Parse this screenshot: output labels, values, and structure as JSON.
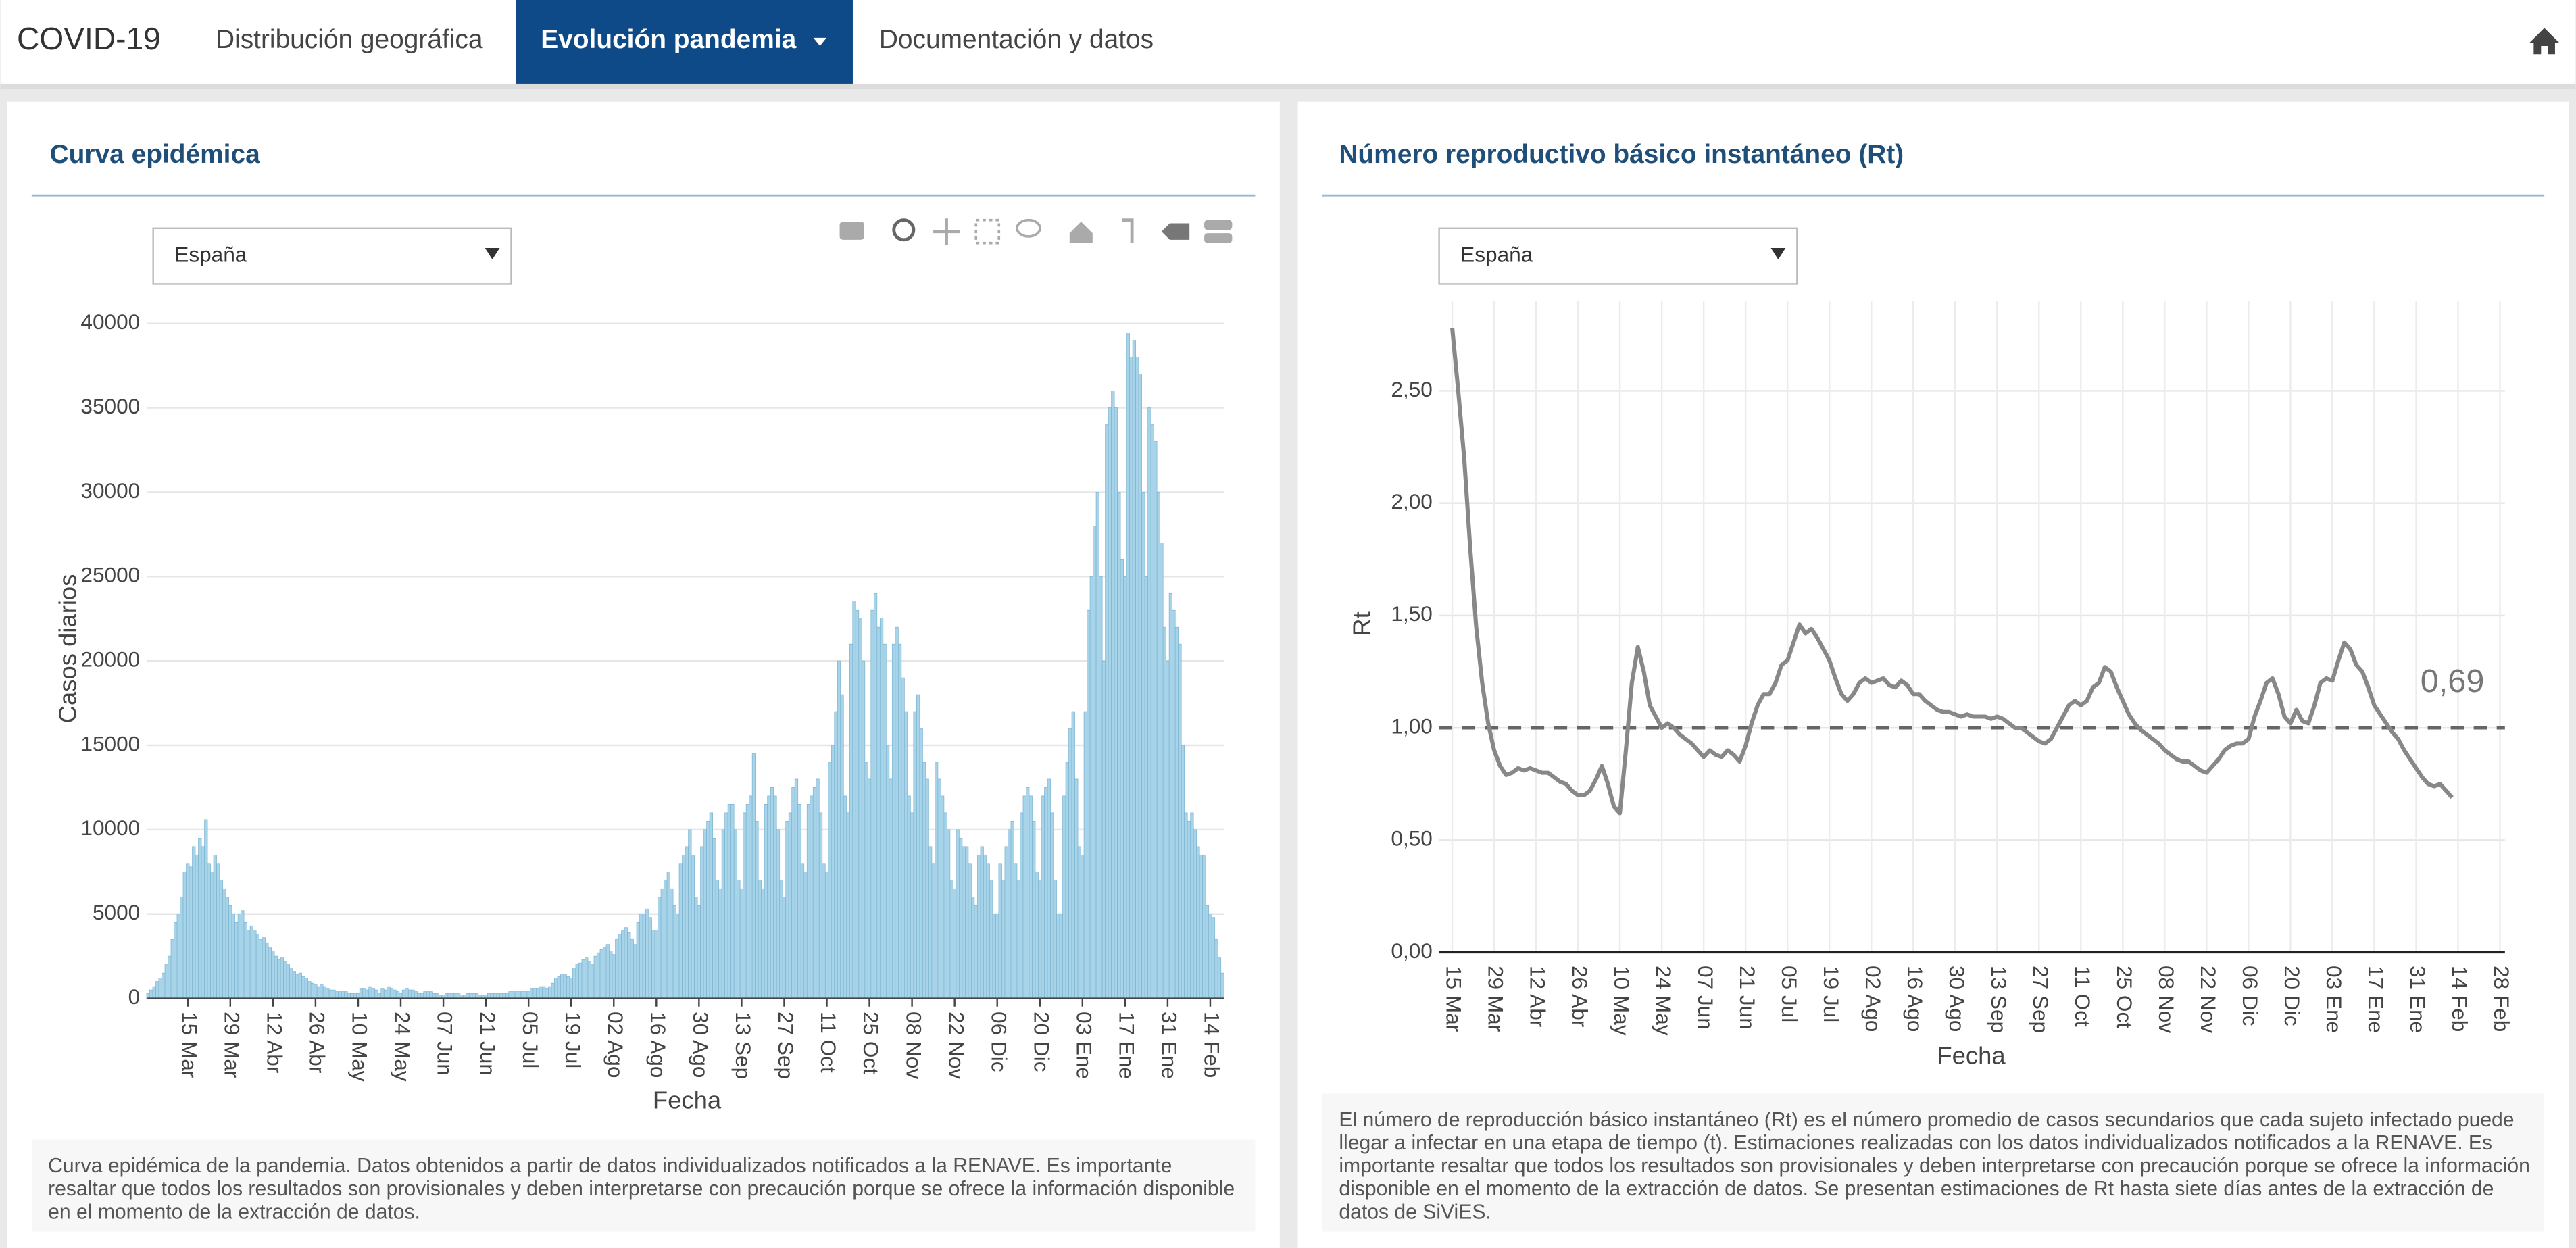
{
  "nav": {
    "brand": "COVID-19",
    "items": [
      "Distribución geográfica",
      "Evolución pandemia",
      "Documentación y datos"
    ]
  },
  "chart_data": [
    {
      "type": "bar",
      "title": "Curva epidémica",
      "selector": "España",
      "xlabel": "Fecha",
      "ylabel": "Casos diarios",
      "color": "#a8d4ea",
      "grid": true,
      "ylim": [
        0,
        41000
      ],
      "yticks": [
        0,
        5000,
        10000,
        15000,
        20000,
        25000,
        30000,
        35000,
        40000
      ],
      "categories": [
        null,
        null,
        null,
        null,
        null,
        null,
        null,
        null,
        null,
        null,
        null,
        null,
        null,
        "15 Mar",
        null,
        null,
        null,
        null,
        null,
        null,
        null,
        null,
        null,
        null,
        null,
        null,
        null,
        "29 Mar",
        null,
        null,
        null,
        null,
        null,
        null,
        null,
        null,
        null,
        null,
        null,
        null,
        null,
        "12 Abr",
        null,
        null,
        null,
        null,
        null,
        null,
        null,
        null,
        null,
        null,
        null,
        null,
        null,
        "26 Abr",
        null,
        null,
        null,
        null,
        null,
        null,
        null,
        null,
        null,
        null,
        null,
        null,
        null,
        "10 May",
        null,
        null,
        null,
        null,
        null,
        null,
        null,
        null,
        null,
        null,
        null,
        null,
        null,
        "24 May",
        null,
        null,
        null,
        null,
        null,
        null,
        null,
        null,
        null,
        null,
        null,
        null,
        null,
        "07 Jun",
        null,
        null,
        null,
        null,
        null,
        null,
        null,
        null,
        null,
        null,
        null,
        null,
        null,
        "21 Jun",
        null,
        null,
        null,
        null,
        null,
        null,
        null,
        null,
        null,
        null,
        null,
        null,
        null,
        "05 Jul",
        null,
        null,
        null,
        null,
        null,
        null,
        null,
        null,
        null,
        null,
        null,
        null,
        null,
        "19 Jul",
        null,
        null,
        null,
        null,
        null,
        null,
        null,
        null,
        null,
        null,
        null,
        null,
        null,
        "02 Ago",
        null,
        null,
        null,
        null,
        null,
        null,
        null,
        null,
        null,
        null,
        null,
        null,
        null,
        "16 Ago",
        null,
        null,
        null,
        null,
        null,
        null,
        null,
        null,
        null,
        null,
        null,
        null,
        null,
        "30 Ago",
        null,
        null,
        null,
        null,
        null,
        null,
        null,
        null,
        null,
        null,
        null,
        null,
        null,
        "13 Sep",
        null,
        null,
        null,
        null,
        null,
        null,
        null,
        null,
        null,
        null,
        null,
        null,
        null,
        "27 Sep",
        null,
        null,
        null,
        null,
        null,
        null,
        null,
        null,
        null,
        null,
        null,
        null,
        null,
        "11 Oct",
        null,
        null,
        null,
        null,
        null,
        null,
        null,
        null,
        null,
        null,
        null,
        null,
        null,
        "25 Oct",
        null,
        null,
        null,
        null,
        null,
        null,
        null,
        null,
        null,
        null,
        null,
        null,
        null,
        "08 Nov",
        null,
        null,
        null,
        null,
        null,
        null,
        null,
        null,
        null,
        null,
        null,
        null,
        null,
        "22 Nov",
        null,
        null,
        null,
        null,
        null,
        null,
        null,
        null,
        null,
        null,
        null,
        null,
        null,
        "06 Dic",
        null,
        null,
        null,
        null,
        null,
        null,
        null,
        null,
        null,
        null,
        null,
        null,
        null,
        "20 Dic",
        null,
        null,
        null,
        null,
        null,
        null,
        null,
        null,
        null,
        null,
        null,
        null,
        null,
        "03 Ene",
        null,
        null,
        null,
        null,
        null,
        null,
        null,
        null,
        null,
        null,
        null,
        null,
        null,
        "17 Ene",
        null,
        null,
        null,
        null,
        null,
        null,
        null,
        null,
        null,
        null,
        null,
        null,
        null,
        "31 Ene",
        null,
        null,
        null,
        null,
        null,
        null,
        null,
        null,
        null,
        null,
        null,
        null,
        null,
        "14 Feb",
        null,
        null,
        null,
        null
      ],
      "values": [
        300,
        500,
        700,
        1000,
        1200,
        1500,
        2000,
        2500,
        3500,
        4500,
        5000,
        6000,
        7500,
        8000,
        7800,
        9000,
        8500,
        9500,
        9000,
        10600,
        8000,
        7500,
        8500,
        8000,
        7000,
        6500,
        6000,
        5500,
        5000,
        4500,
        5000,
        5200,
        4500,
        4000,
        4300,
        4000,
        3800,
        3500,
        3600,
        3300,
        3000,
        2800,
        2500,
        2300,
        2400,
        2200,
        2000,
        1800,
        1600,
        1400,
        1500,
        1300,
        1200,
        1000,
        900,
        800,
        700,
        800,
        700,
        600,
        500,
        500,
        400,
        400,
        400,
        400,
        300,
        300,
        300,
        300,
        600,
        600,
        500,
        700,
        600,
        500,
        300,
        600,
        500,
        700,
        600,
        500,
        400,
        300,
        500,
        600,
        500,
        500,
        400,
        300,
        300,
        400,
        400,
        400,
        300,
        300,
        200,
        200,
        300,
        300,
        300,
        300,
        300,
        200,
        200,
        300,
        300,
        300,
        300,
        200,
        200,
        200,
        300,
        300,
        300,
        300,
        300,
        300,
        300,
        400,
        400,
        400,
        400,
        400,
        400,
        400,
        600,
        600,
        600,
        700,
        700,
        600,
        700,
        900,
        1200,
        1300,
        1400,
        1400,
        1300,
        1200,
        1800,
        2000,
        2100,
        2300,
        2400,
        2200,
        2000,
        2500,
        2700,
        2900,
        3000,
        3200,
        2800,
        2600,
        3500,
        3800,
        4000,
        4200,
        3900,
        3500,
        3200,
        4500,
        5000,
        5000,
        5300,
        4800,
        4000,
        4000,
        6000,
        6500,
        7000,
        7500,
        6500,
        5500,
        5000,
        8000,
        8500,
        9000,
        10000,
        8500,
        6000,
        5500,
        9000,
        10000,
        10500,
        11000,
        9500,
        7000,
        6500,
        10000,
        11000,
        11500,
        11500,
        10000,
        7000,
        6500,
        11000,
        11500,
        12000,
        14500,
        10500,
        7000,
        6500,
        11500,
        12000,
        12500,
        12000,
        10000,
        7000,
        6000,
        10500,
        11000,
        12500,
        13000,
        11500,
        8000,
        7500,
        11500,
        12000,
        12500,
        13000,
        11000,
        8000,
        7500,
        14000,
        15000,
        17000,
        20000,
        18000,
        12000,
        11000,
        21000,
        23500,
        23000,
        22500,
        20000,
        14000,
        13000,
        23000,
        24000,
        22000,
        22500,
        21000,
        15000,
        13000,
        21000,
        22000,
        21000,
        19000,
        17000,
        12000,
        11000,
        17000,
        18000,
        16000,
        14000,
        13000,
        9000,
        8000,
        14000,
        13000,
        12000,
        11000,
        10000,
        7000,
        6500,
        10000,
        9500,
        9000,
        9000,
        8000,
        6000,
        5500,
        8500,
        9000,
        8500,
        8000,
        7000,
        5000,
        5000,
        8000,
        7000,
        9000,
        10000,
        10500,
        8000,
        7000,
        11000,
        12000,
        12500,
        12000,
        10500,
        7500,
        7000,
        12000,
        12500,
        13000,
        11000,
        7000,
        5000,
        5000,
        12000,
        14000,
        16000,
        17000,
        13000,
        9000,
        8500,
        17000,
        23000,
        25000,
        28000,
        30000,
        25000,
        20000,
        34000,
        35000,
        36000,
        35000,
        30000,
        26000,
        25000,
        39400,
        38000,
        39000,
        38000,
        37000,
        30000,
        25000,
        35000,
        34000,
        33000,
        30000,
        27000,
        22000,
        20000,
        24000,
        23000,
        22000,
        21000,
        15000,
        11000,
        10500,
        11000,
        10000,
        9000,
        8500,
        8500,
        5500,
        5000,
        4800,
        3500,
        2400,
        1500
      ],
      "caption": "Curva epidémica de la pandemia. Datos obtenidos a partir de datos individualizados notificados a la RENAVE. Es importante resaltar que todos los resultados son provisionales y deben interpretarse con precaución porque se ofrece la información disponible en el momento de la extracción de datos."
    },
    {
      "type": "line",
      "title": "Número reproductivo básico instantáneo (Rt)",
      "selector": "España",
      "xlabel": "Fecha",
      "ylabel": "Rt",
      "color": "#888888",
      "grid": true,
      "ylim": [
        0,
        2.9
      ],
      "yticks": [
        {
          "value": 0,
          "label": "0,00"
        },
        {
          "value": 0.5,
          "label": "0,50"
        },
        {
          "value": 1,
          "label": "1,00"
        },
        {
          "value": 1.5,
          "label": "1,50"
        },
        {
          "value": 2,
          "label": "2,00"
        },
        {
          "value": 2.5,
          "label": "2,50"
        }
      ],
      "reference_line": 1,
      "annotation": "0,69",
      "categories": [
        "15 Mar",
        null,
        null,
        null,
        null,
        null,
        null,
        "29 Mar",
        null,
        null,
        null,
        null,
        null,
        null,
        "12 Abr",
        null,
        null,
        null,
        null,
        null,
        null,
        "26 Abr",
        null,
        null,
        null,
        null,
        null,
        null,
        "10 May",
        null,
        null,
        null,
        null,
        null,
        null,
        "24 May",
        null,
        null,
        null,
        null,
        null,
        null,
        "07 Jun",
        null,
        null,
        null,
        null,
        null,
        null,
        "21 Jun",
        null,
        null,
        null,
        null,
        null,
        null,
        "05 Jul",
        null,
        null,
        null,
        null,
        null,
        null,
        "19 Jul",
        null,
        null,
        null,
        null,
        null,
        null,
        "02 Ago",
        null,
        null,
        null,
        null,
        null,
        null,
        "16 Ago",
        null,
        null,
        null,
        null,
        null,
        null,
        "30 Ago",
        null,
        null,
        null,
        null,
        null,
        null,
        "13 Sep",
        null,
        null,
        null,
        null,
        null,
        null,
        "27 Sep",
        null,
        null,
        null,
        null,
        null,
        null,
        "11 Oct",
        null,
        null,
        null,
        null,
        null,
        null,
        "25 Oct",
        null,
        null,
        null,
        null,
        null,
        null,
        "08 Nov",
        null,
        null,
        null,
        null,
        null,
        null,
        "22 Nov",
        null,
        null,
        null,
        null,
        null,
        null,
        "06 Dic",
        null,
        null,
        null,
        null,
        null,
        null,
        "20 Dic",
        null,
        null,
        null,
        null,
        null,
        null,
        "03 Ene",
        null,
        null,
        null,
        null,
        null,
        null,
        "17 Ene",
        null,
        null,
        null,
        null,
        null,
        null,
        "31 Ene",
        null,
        null,
        null,
        null,
        null,
        null,
        "14 Feb",
        null,
        null,
        null,
        null,
        null,
        null,
        "28 Feb"
      ],
      "values": [
        2.78,
        2.5,
        2.2,
        1.8,
        1.45,
        1.2,
        1.02,
        0.9,
        0.83,
        0.79,
        0.8,
        0.82,
        0.81,
        0.82,
        0.81,
        0.8,
        0.8,
        0.78,
        0.76,
        0.75,
        0.72,
        0.7,
        0.7,
        0.72,
        0.77,
        0.83,
        0.75,
        0.65,
        0.62,
        0.9,
        1.2,
        1.36,
        1.25,
        1.1,
        1.05,
        1.0,
        1.02,
        1.0,
        0.97,
        0.95,
        0.93,
        0.9,
        0.87,
        0.9,
        0.88,
        0.87,
        0.9,
        0.88,
        0.85,
        0.92,
        1.02,
        1.1,
        1.15,
        1.15,
        1.2,
        1.28,
        1.3,
        1.38,
        1.46,
        1.42,
        1.44,
        1.4,
        1.35,
        1.3,
        1.22,
        1.15,
        1.12,
        1.15,
        1.2,
        1.22,
        1.2,
        1.21,
        1.22,
        1.19,
        1.18,
        1.21,
        1.19,
        1.15,
        1.15,
        1.12,
        1.1,
        1.08,
        1.07,
        1.07,
        1.06,
        1.05,
        1.06,
        1.05,
        1.05,
        1.05,
        1.04,
        1.05,
        1.04,
        1.02,
        1.0,
        1.0,
        0.98,
        0.96,
        0.94,
        0.93,
        0.95,
        1.0,
        1.05,
        1.1,
        1.12,
        1.1,
        1.12,
        1.18,
        1.2,
        1.27,
        1.25,
        1.18,
        1.12,
        1.06,
        1.02,
        0.99,
        0.97,
        0.95,
        0.93,
        0.9,
        0.88,
        0.86,
        0.85,
        0.85,
        0.83,
        0.81,
        0.8,
        0.83,
        0.86,
        0.9,
        0.92,
        0.93,
        0.93,
        0.95,
        1.05,
        1.12,
        1.2,
        1.22,
        1.15,
        1.05,
        1.02,
        1.08,
        1.03,
        1.02,
        1.1,
        1.2,
        1.22,
        1.21,
        1.3,
        1.38,
        1.35,
        1.28,
        1.25,
        1.18,
        1.1,
        1.06,
        1.02,
        0.98,
        0.95,
        0.9,
        0.86,
        0.82,
        0.78,
        0.75,
        0.74,
        0.75,
        0.72,
        0.69,
        null,
        null,
        null,
        null,
        null,
        null,
        null,
        null
      ],
      "caption": "El número de reproducción básico instantáneo (Rt) es el número promedio de casos secundarios que cada sujeto infectado puede llegar a infectar en una etapa de tiempo (t). Estimaciones realizadas con los datos individualizados notificados a la RENAVE. Es importante resaltar que todos los resultados son provisionales y deben interpretarse con precaución porque se ofrece la información disponible en el momento de la extracción de datos. Se presentan estimaciones de Rt hasta siete días antes de la extracción de datos de SiViES."
    }
  ]
}
